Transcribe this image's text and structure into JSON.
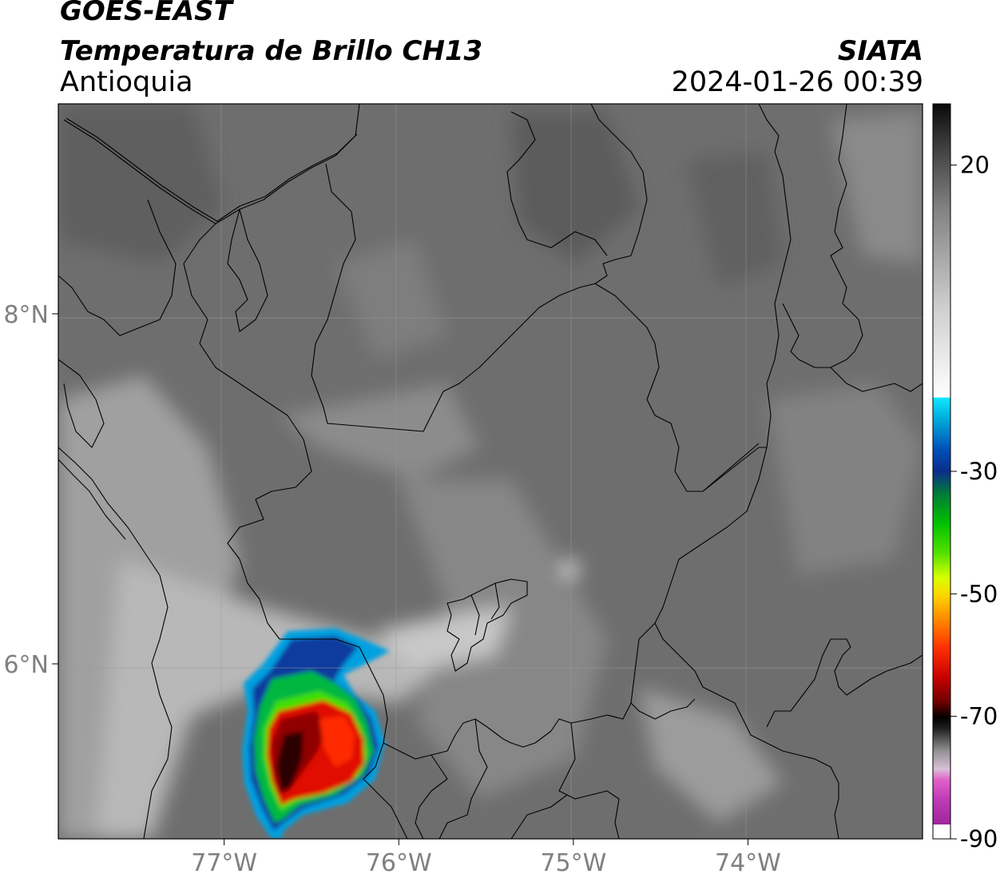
{
  "header": {
    "satellite": "GOES-EAST",
    "product": "Temperatura de Brillo CH13",
    "region": "Antioquia",
    "agency": "SIATA",
    "datetime": "2024-01-26 00:39"
  },
  "map": {
    "lon_range": [
      -77.95,
      -73.0
    ],
    "lat_range": [
      5.0,
      9.2
    ],
    "gridlines": true,
    "lon_ticks": [
      {
        "value": -77,
        "label": "77°W"
      },
      {
        "value": -76,
        "label": "76°W"
      },
      {
        "value": -75,
        "label": "75°W"
      },
      {
        "value": -74,
        "label": "74°W"
      }
    ],
    "lat_ticks": [
      {
        "value": 8,
        "label": "8°N"
      },
      {
        "value": 6,
        "label": "6°N"
      }
    ]
  },
  "colorbar": {
    "range": [
      -90,
      30
    ],
    "ticks": [
      {
        "value": 20,
        "label": "20"
      },
      {
        "value": -30,
        "label": "-30"
      },
      {
        "value": -50,
        "label": "-50"
      },
      {
        "value": -70,
        "label": "-70"
      },
      {
        "value": -90,
        "label": "-90"
      }
    ]
  },
  "colors": {
    "background_gray": "#6e6e6e",
    "cold_cloud_blue": "#003f9e",
    "cold_cloud_green": "#00c000",
    "cold_cloud_red": "#d80000",
    "coastline": "#000000"
  }
}
